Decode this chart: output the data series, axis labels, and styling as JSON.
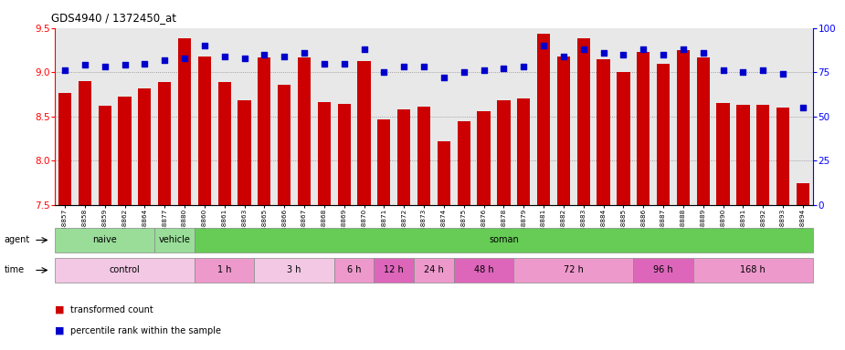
{
  "title": "GDS4940 / 1372450_at",
  "samples": [
    "GSM338857",
    "GSM338858",
    "GSM338859",
    "GSM338862",
    "GSM338864",
    "GSM338877",
    "GSM338880",
    "GSM338860",
    "GSM338861",
    "GSM338863",
    "GSM338865",
    "GSM338866",
    "GSM338867",
    "GSM338868",
    "GSM338869",
    "GSM338870",
    "GSM338871",
    "GSM338872",
    "GSM338873",
    "GSM338874",
    "GSM338875",
    "GSM338876",
    "GSM338878",
    "GSM338879",
    "GSM338881",
    "GSM338882",
    "GSM338883",
    "GSM338884",
    "GSM338885",
    "GSM338886",
    "GSM338887",
    "GSM338888",
    "GSM338889",
    "GSM338890",
    "GSM338891",
    "GSM338892",
    "GSM338893",
    "GSM338894"
  ],
  "bar_values": [
    8.77,
    8.9,
    8.62,
    8.72,
    8.82,
    8.89,
    9.38,
    9.18,
    8.89,
    8.68,
    9.17,
    8.86,
    9.17,
    8.66,
    8.64,
    9.13,
    8.47,
    8.58,
    8.61,
    8.22,
    8.45,
    8.56,
    8.68,
    8.7,
    9.44,
    9.18,
    9.38,
    9.15,
    9.0,
    9.23,
    9.1,
    9.25,
    9.17,
    8.65,
    8.63,
    8.63,
    8.6,
    7.74
  ],
  "percentile_values": [
    76,
    79,
    78,
    79,
    80,
    82,
    83,
    90,
    84,
    83,
    85,
    84,
    86,
    80,
    80,
    88,
    75,
    78,
    78,
    72,
    75,
    76,
    77,
    78,
    90,
    84,
    88,
    86,
    85,
    88,
    85,
    88,
    86,
    76,
    75,
    76,
    74,
    55
  ],
  "ylim_left": [
    7.5,
    9.5
  ],
  "ylim_right": [
    0,
    100
  ],
  "bar_color": "#cc0000",
  "dot_color": "#0000cc",
  "background_color": "#e8e8e8",
  "agent_groups": [
    {
      "label": "naive",
      "start": 0,
      "end": 4,
      "color": "#99dd99"
    },
    {
      "label": "vehicle",
      "start": 5,
      "end": 6,
      "color": "#99dd99"
    },
    {
      "label": "soman",
      "start": 7,
      "end": 37,
      "color": "#66cc55"
    }
  ],
  "time_groups": [
    {
      "label": "control",
      "start": 0,
      "end": 6,
      "color": "#f2c8e4"
    },
    {
      "label": "1 h",
      "start": 7,
      "end": 9,
      "color": "#ee99cc"
    },
    {
      "label": "3 h",
      "start": 10,
      "end": 13,
      "color": "#f2c8e4"
    },
    {
      "label": "6 h",
      "start": 14,
      "end": 15,
      "color": "#ee99cc"
    },
    {
      "label": "12 h",
      "start": 16,
      "end": 17,
      "color": "#dd66bb"
    },
    {
      "label": "24 h",
      "start": 18,
      "end": 19,
      "color": "#ee99cc"
    },
    {
      "label": "48 h",
      "start": 20,
      "end": 22,
      "color": "#dd66bb"
    },
    {
      "label": "72 h",
      "start": 23,
      "end": 28,
      "color": "#ee99cc"
    },
    {
      "label": "96 h",
      "start": 29,
      "end": 31,
      "color": "#dd66bb"
    },
    {
      "label": "168 h",
      "start": 32,
      "end": 37,
      "color": "#ee99cc"
    }
  ]
}
